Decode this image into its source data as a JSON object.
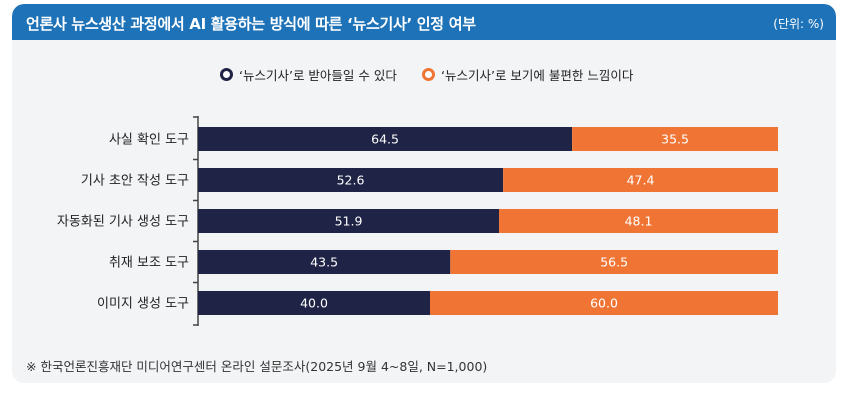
{
  "header": {
    "title": "언론사 뉴스생산 과정에서 AI 활용하는 방식에 따른 ‘뉴스기사’ 인정 여부",
    "unit": "(단위: %)"
  },
  "note": "※ 한국언론진흥재단 미디어연구센터 온라인 설문조사(2025년 9월 4~8일, N=1,000)",
  "colors": {
    "header": "#1e73b8",
    "series_dark": "#1f2346",
    "series_orange": "#f07535"
  },
  "chart_data": {
    "type": "bar",
    "orientation": "horizontal",
    "stacked": true,
    "title": "언론사 뉴스생산 과정에서 AI 활용하는 방식에 따른 ‘뉴스기사’ 인정 여부",
    "unit": "%",
    "xlim": [
      0,
      100
    ],
    "legend": "top-center",
    "grid": false,
    "categories": [
      "사실 확인 도구",
      "기사 초안 작성 도구",
      "자동화된 기사 생성 도구",
      "취재 보조 도구",
      "이미지 생성 도구"
    ],
    "series": [
      {
        "name": "‘뉴스기사’로 받아들일 수 있다",
        "color": "#1f2346",
        "values": [
          64.5,
          52.6,
          51.9,
          43.5,
          40.0
        ]
      },
      {
        "name": "‘뉴스기사’로 보기에 불편한 느낌이다",
        "color": "#f07535",
        "values": [
          35.5,
          47.4,
          48.1,
          56.5,
          60.0
        ]
      }
    ]
  }
}
